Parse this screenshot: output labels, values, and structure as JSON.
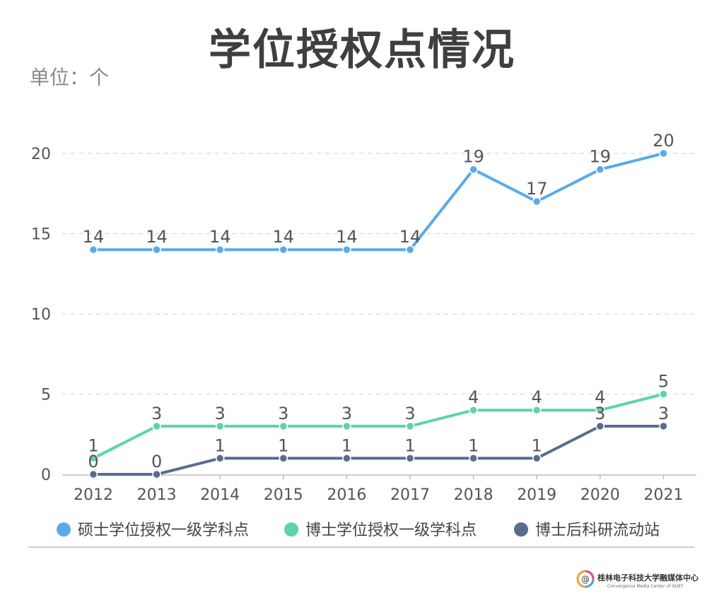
{
  "page": {
    "title": "学位授权点情况",
    "unit": "单位：个",
    "brand_cn": "桂林电子科技大学融媒体中心",
    "brand_en": "Convergence Media Center of GUET",
    "brand_logo_text": "@"
  },
  "colors": {
    "master": "#5aaaea",
    "phd": "#5dd4a8",
    "postdoc": "#586d8e",
    "axis_text": "#555555",
    "grid": "#dddddd"
  },
  "chart_data": {
    "type": "line",
    "title": "学位授权点情况",
    "xlabel": "",
    "ylabel": "单位：个",
    "categories": [
      "2012",
      "2013",
      "2014",
      "2015",
      "2016",
      "2017",
      "2018",
      "2019",
      "2020",
      "2021"
    ],
    "ylim": [
      0,
      22
    ],
    "yticks": [
      0,
      5,
      10,
      15,
      20
    ],
    "grid": true,
    "legend_position": "bottom",
    "series": [
      {
        "name": "硕士学位授权一级学科点",
        "color": "#5aaaea",
        "values": [
          14,
          14,
          14,
          14,
          14,
          14,
          19,
          17,
          19,
          20
        ]
      },
      {
        "name": "博士学位授权一级学科点",
        "color": "#5dd4a8",
        "values": [
          1,
          3,
          3,
          3,
          3,
          3,
          4,
          4,
          4,
          5
        ]
      },
      {
        "name": "博士后科研流动站",
        "color": "#586d8e",
        "values": [
          0,
          0,
          1,
          1,
          1,
          1,
          1,
          1,
          3,
          3
        ]
      }
    ]
  }
}
